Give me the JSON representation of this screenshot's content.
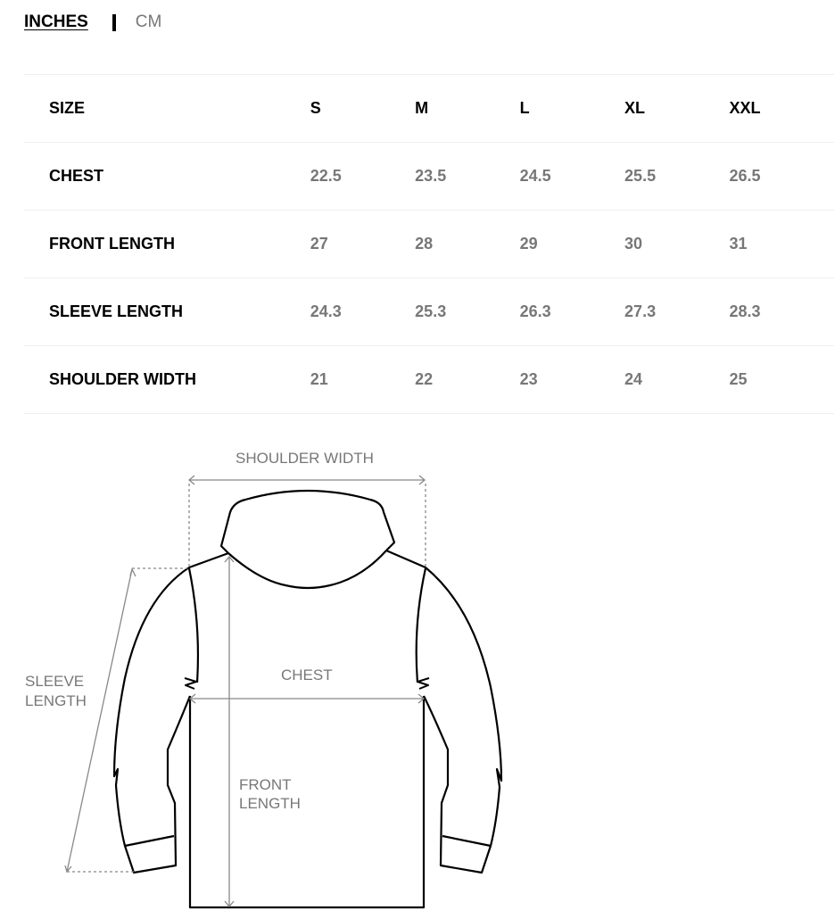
{
  "units": {
    "active": "INCHES",
    "inactive": "CM"
  },
  "table": {
    "header": {
      "label": "SIZE",
      "sizes": [
        "S",
        "M",
        "L",
        "XL",
        "XXL"
      ]
    },
    "rows": [
      {
        "label": "CHEST",
        "values": [
          "22.5",
          "23.5",
          "24.5",
          "25.5",
          "26.5"
        ]
      },
      {
        "label": "FRONT LENGTH",
        "values": [
          "27",
          "28",
          "29",
          "30",
          "31"
        ]
      },
      {
        "label": "SLEEVE LENGTH",
        "values": [
          "24.3",
          "25.3",
          "26.3",
          "27.3",
          "28.3"
        ]
      },
      {
        "label": "SHOULDER WIDTH",
        "values": [
          "21",
          "22",
          "23",
          "24",
          "25"
        ]
      }
    ]
  },
  "diagram": {
    "shoulder_width": "SHOULDER WIDTH",
    "chest": "CHEST",
    "front_length_1": "FRONT",
    "front_length_2": "LENGTH",
    "sleeve_length_1": "SLEEVE",
    "sleeve_length_2": "LENGTH"
  }
}
